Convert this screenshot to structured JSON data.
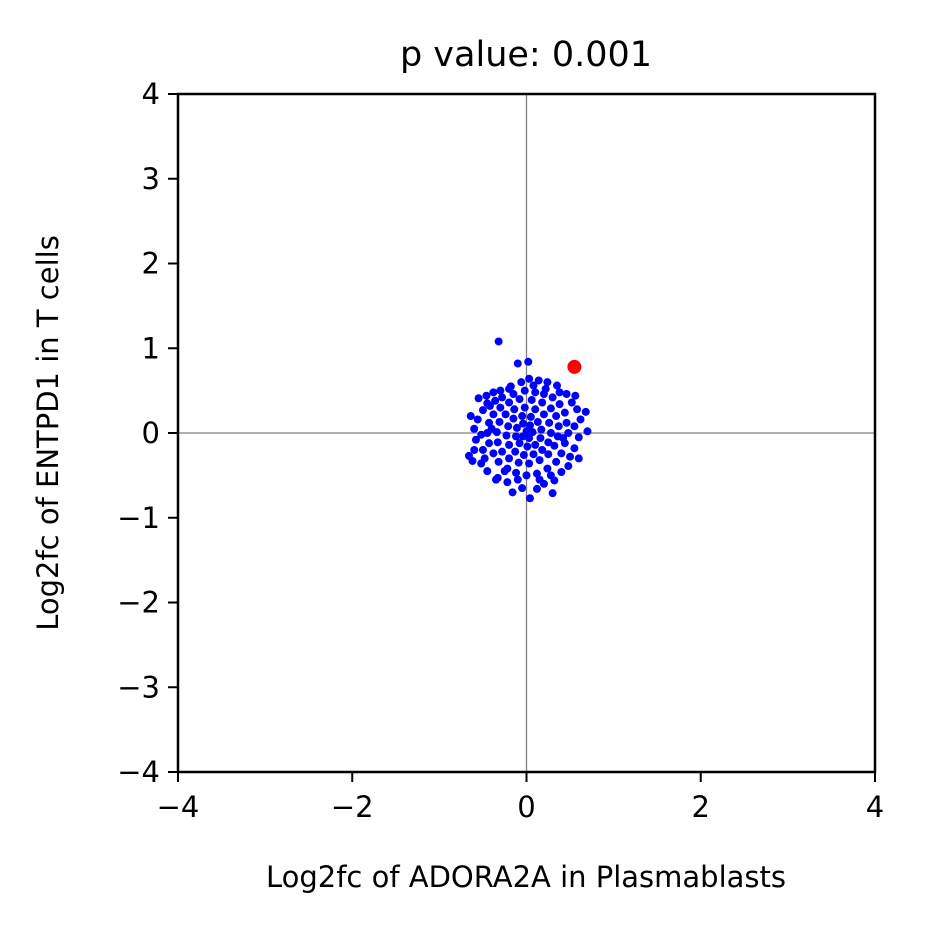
{
  "chart_data": {
    "type": "scatter",
    "title": "p value: 0.001",
    "xlabel": "Log2fc of ADORA2A in Plasmablasts",
    "ylabel": "Log2fc of ENTPD1 in T cells",
    "xlim": [
      -4,
      4
    ],
    "ylim": [
      -4,
      4
    ],
    "xticks": [
      -4,
      -2,
      0,
      2,
      4
    ],
    "yticks": [
      -4,
      -3,
      -2,
      -1,
      0,
      1,
      2,
      3,
      4
    ],
    "xtick_labels": [
      "−4",
      "−2",
      "0",
      "2",
      "4"
    ],
    "ytick_labels": [
      "−4",
      "−3",
      "−2",
      "−1",
      "0",
      "1",
      "2",
      "3",
      "4"
    ],
    "reference_lines": {
      "x": 0,
      "y": 0,
      "color": "#808080"
    },
    "grid": false,
    "series": [
      {
        "color": "#0000ff",
        "marker_size": "small",
        "points": [
          [
            -0.32,
            1.08
          ],
          [
            -0.1,
            0.82
          ],
          [
            0.02,
            0.84
          ],
          [
            0.52,
            0.78
          ],
          [
            -0.55,
            0.41
          ],
          [
            -0.46,
            0.44
          ],
          [
            -0.38,
            0.48
          ],
          [
            -0.3,
            0.5
          ],
          [
            -0.18,
            0.55
          ],
          [
            -0.06,
            0.6
          ],
          [
            0.03,
            0.64
          ],
          [
            0.14,
            0.62
          ],
          [
            0.24,
            0.6
          ],
          [
            0.35,
            0.56
          ],
          [
            0.46,
            0.46
          ],
          [
            0.52,
            0.36
          ],
          [
            0.58,
            0.28
          ],
          [
            0.68,
            0.25
          ],
          [
            0.62,
            0.16
          ],
          [
            0.7,
            0.02
          ],
          [
            0.6,
            -0.05
          ],
          [
            0.55,
            -0.18
          ],
          [
            0.5,
            -0.28
          ],
          [
            0.48,
            -0.39
          ],
          [
            0.4,
            -0.46
          ],
          [
            0.32,
            -0.56
          ],
          [
            0.2,
            -0.6
          ],
          [
            0.12,
            -0.66
          ],
          [
            0.3,
            -0.71
          ],
          [
            0.04,
            -0.77
          ],
          [
            -0.05,
            -0.65
          ],
          [
            -0.16,
            -0.7
          ],
          [
            -0.22,
            -0.58
          ],
          [
            -0.33,
            -0.53
          ],
          [
            -0.45,
            -0.45
          ],
          [
            -0.52,
            -0.36
          ],
          [
            -0.62,
            -0.33
          ],
          [
            -0.66,
            -0.27
          ],
          [
            -0.5,
            -0.2
          ],
          [
            -0.58,
            -0.08
          ],
          [
            -0.6,
            0.05
          ],
          [
            -0.64,
            0.2
          ],
          [
            -0.56,
            0.16
          ],
          [
            -0.5,
            0.27
          ],
          [
            -0.42,
            0.32
          ],
          [
            -0.36,
            0.38
          ],
          [
            -0.28,
            0.42
          ],
          [
            -0.15,
            0.46
          ],
          [
            -0.02,
            0.5
          ],
          [
            0.1,
            0.48
          ],
          [
            0.2,
            0.46
          ],
          [
            0.3,
            0.42
          ],
          [
            0.38,
            0.34
          ],
          [
            0.44,
            0.24
          ],
          [
            0.46,
            0.12
          ],
          [
            0.48,
            0.0
          ],
          [
            0.44,
            -0.12
          ],
          [
            0.4,
            -0.24
          ],
          [
            0.34,
            -0.34
          ],
          [
            0.24,
            -0.42
          ],
          [
            0.12,
            -0.48
          ],
          [
            0.0,
            -0.5
          ],
          [
            -0.12,
            -0.47
          ],
          [
            -0.22,
            -0.42
          ],
          [
            -0.32,
            -0.34
          ],
          [
            -0.38,
            -0.24
          ],
          [
            -0.43,
            -0.12
          ],
          [
            -0.45,
            0.0
          ],
          [
            -0.43,
            0.12
          ],
          [
            -0.38,
            0.22
          ],
          [
            -0.3,
            0.3
          ],
          [
            -0.2,
            0.36
          ],
          [
            -0.08,
            0.4
          ],
          [
            0.06,
            0.39
          ],
          [
            0.18,
            0.36
          ],
          [
            0.28,
            0.29
          ],
          [
            0.34,
            0.2
          ],
          [
            0.37,
            0.08
          ],
          [
            0.36,
            -0.04
          ],
          [
            0.32,
            -0.15
          ],
          [
            0.25,
            -0.25
          ],
          [
            0.15,
            -0.32
          ],
          [
            0.03,
            -0.36
          ],
          [
            -0.09,
            -0.35
          ],
          [
            -0.2,
            -0.3
          ],
          [
            -0.28,
            -0.22
          ],
          [
            -0.33,
            -0.11
          ],
          [
            -0.34,
            0.01
          ],
          [
            -0.31,
            0.13
          ],
          [
            -0.24,
            0.22
          ],
          [
            -0.14,
            0.28
          ],
          [
            -0.02,
            0.3
          ],
          [
            0.1,
            0.28
          ],
          [
            0.2,
            0.22
          ],
          [
            0.26,
            0.12
          ],
          [
            0.28,
            0.0
          ],
          [
            0.25,
            -0.11
          ],
          [
            0.18,
            -0.2
          ],
          [
            0.08,
            -0.25
          ],
          [
            -0.03,
            -0.26
          ],
          [
            -0.13,
            -0.22
          ],
          [
            -0.2,
            -0.14
          ],
          [
            -0.23,
            -0.03
          ],
          [
            -0.21,
            0.08
          ],
          [
            -0.15,
            0.17
          ],
          [
            -0.05,
            0.2
          ],
          [
            0.05,
            0.19
          ],
          [
            0.13,
            0.13
          ],
          [
            0.17,
            0.04
          ],
          [
            0.16,
            -0.06
          ],
          [
            0.1,
            -0.14
          ],
          [
            0.01,
            -0.16
          ],
          [
            -0.08,
            -0.12
          ],
          [
            -0.12,
            -0.04
          ],
          [
            -0.11,
            0.06
          ],
          [
            -0.04,
            0.11
          ],
          [
            0.04,
            0.09
          ],
          [
            0.07,
            0.01
          ],
          [
            0.03,
            -0.06
          ],
          [
            -0.04,
            -0.04
          ],
          [
            0.0,
            0.02
          ],
          [
            -0.25,
            -0.45
          ],
          [
            0.22,
            0.52
          ],
          [
            -0.4,
            0.05
          ],
          [
            0.42,
            -0.06
          ],
          [
            -0.1,
            -0.55
          ],
          [
            0.08,
            0.56
          ],
          [
            0.55,
            0.08
          ],
          [
            -0.52,
            -0.02
          ],
          [
            0.6,
            -0.3
          ],
          [
            -0.35,
            -0.55
          ],
          [
            -0.6,
            -0.2
          ],
          [
            0.56,
            0.44
          ],
          [
            -0.45,
            0.35
          ],
          [
            0.15,
            -0.55
          ],
          [
            -0.2,
            0.52
          ],
          [
            0.38,
            0.48
          ],
          [
            0.28,
            -0.5
          ],
          [
            -0.48,
            -0.3
          ]
        ]
      },
      {
        "color": "#ff0000",
        "marker_size": "large",
        "points": [
          [
            0.55,
            0.78
          ]
        ]
      }
    ]
  }
}
